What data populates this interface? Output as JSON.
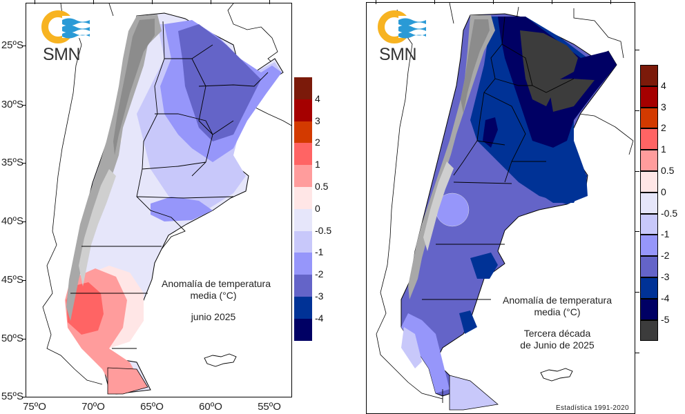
{
  "organization": "SMN",
  "colors": {
    "logo_orange": "#F7B321",
    "logo_blue": "#2A9AD6",
    "mountain_dark": "#8c8c8c",
    "mountain_mid": "#a8a8a8",
    "mountain_light": "#cfcfcf",
    "border": "#000000"
  },
  "left_panel": {
    "caption_title_line1": "Anomalía de temperatura",
    "caption_title_line2": "media (°C)",
    "caption_period": "junio 2025",
    "lat_labels": [
      "25ºS",
      "30ºS",
      "35ºS",
      "40ºS",
      "45ºS",
      "50ºS",
      "55ºS"
    ],
    "lon_labels": [
      "75ºO",
      "70ºO",
      "65ºO",
      "60ºO",
      "55ºO"
    ],
    "legend": {
      "labels": [
        "4",
        "3",
        "2",
        "1",
        "0.5",
        "0",
        "-0.5",
        "-1",
        "-2",
        "-3",
        "-4"
      ],
      "colors": [
        "#7B1A0A",
        "#A50000",
        "#D33A00",
        "#FF6464",
        "#FF9C9C",
        "#FFE6E6",
        "#E6E6FA",
        "#C8C8FA",
        "#9696FA",
        "#6464C8",
        "#003296",
        "#000064"
      ]
    }
  },
  "right_panel": {
    "caption_title_line1": "Anomalía de temperatura",
    "caption_title_line2": "media (°C)",
    "caption_period_line1": "Tercera década",
    "caption_period_line2": "de Junio de 2025",
    "credit": "Estadística 1991-2020",
    "legend": {
      "labels": [
        "4",
        "3",
        "2",
        "1",
        "0.5",
        "0",
        "-0.5",
        "-1",
        "-2",
        "-3",
        "-4",
        "-5"
      ],
      "colors": [
        "#7B1A0A",
        "#A50000",
        "#D33A00",
        "#FF6464",
        "#FF9C9C",
        "#FFE6E6",
        "#E6E6FA",
        "#C8C8FA",
        "#9696FA",
        "#6464C8",
        "#003296",
        "#000064",
        "#3C3C3C"
      ]
    }
  }
}
